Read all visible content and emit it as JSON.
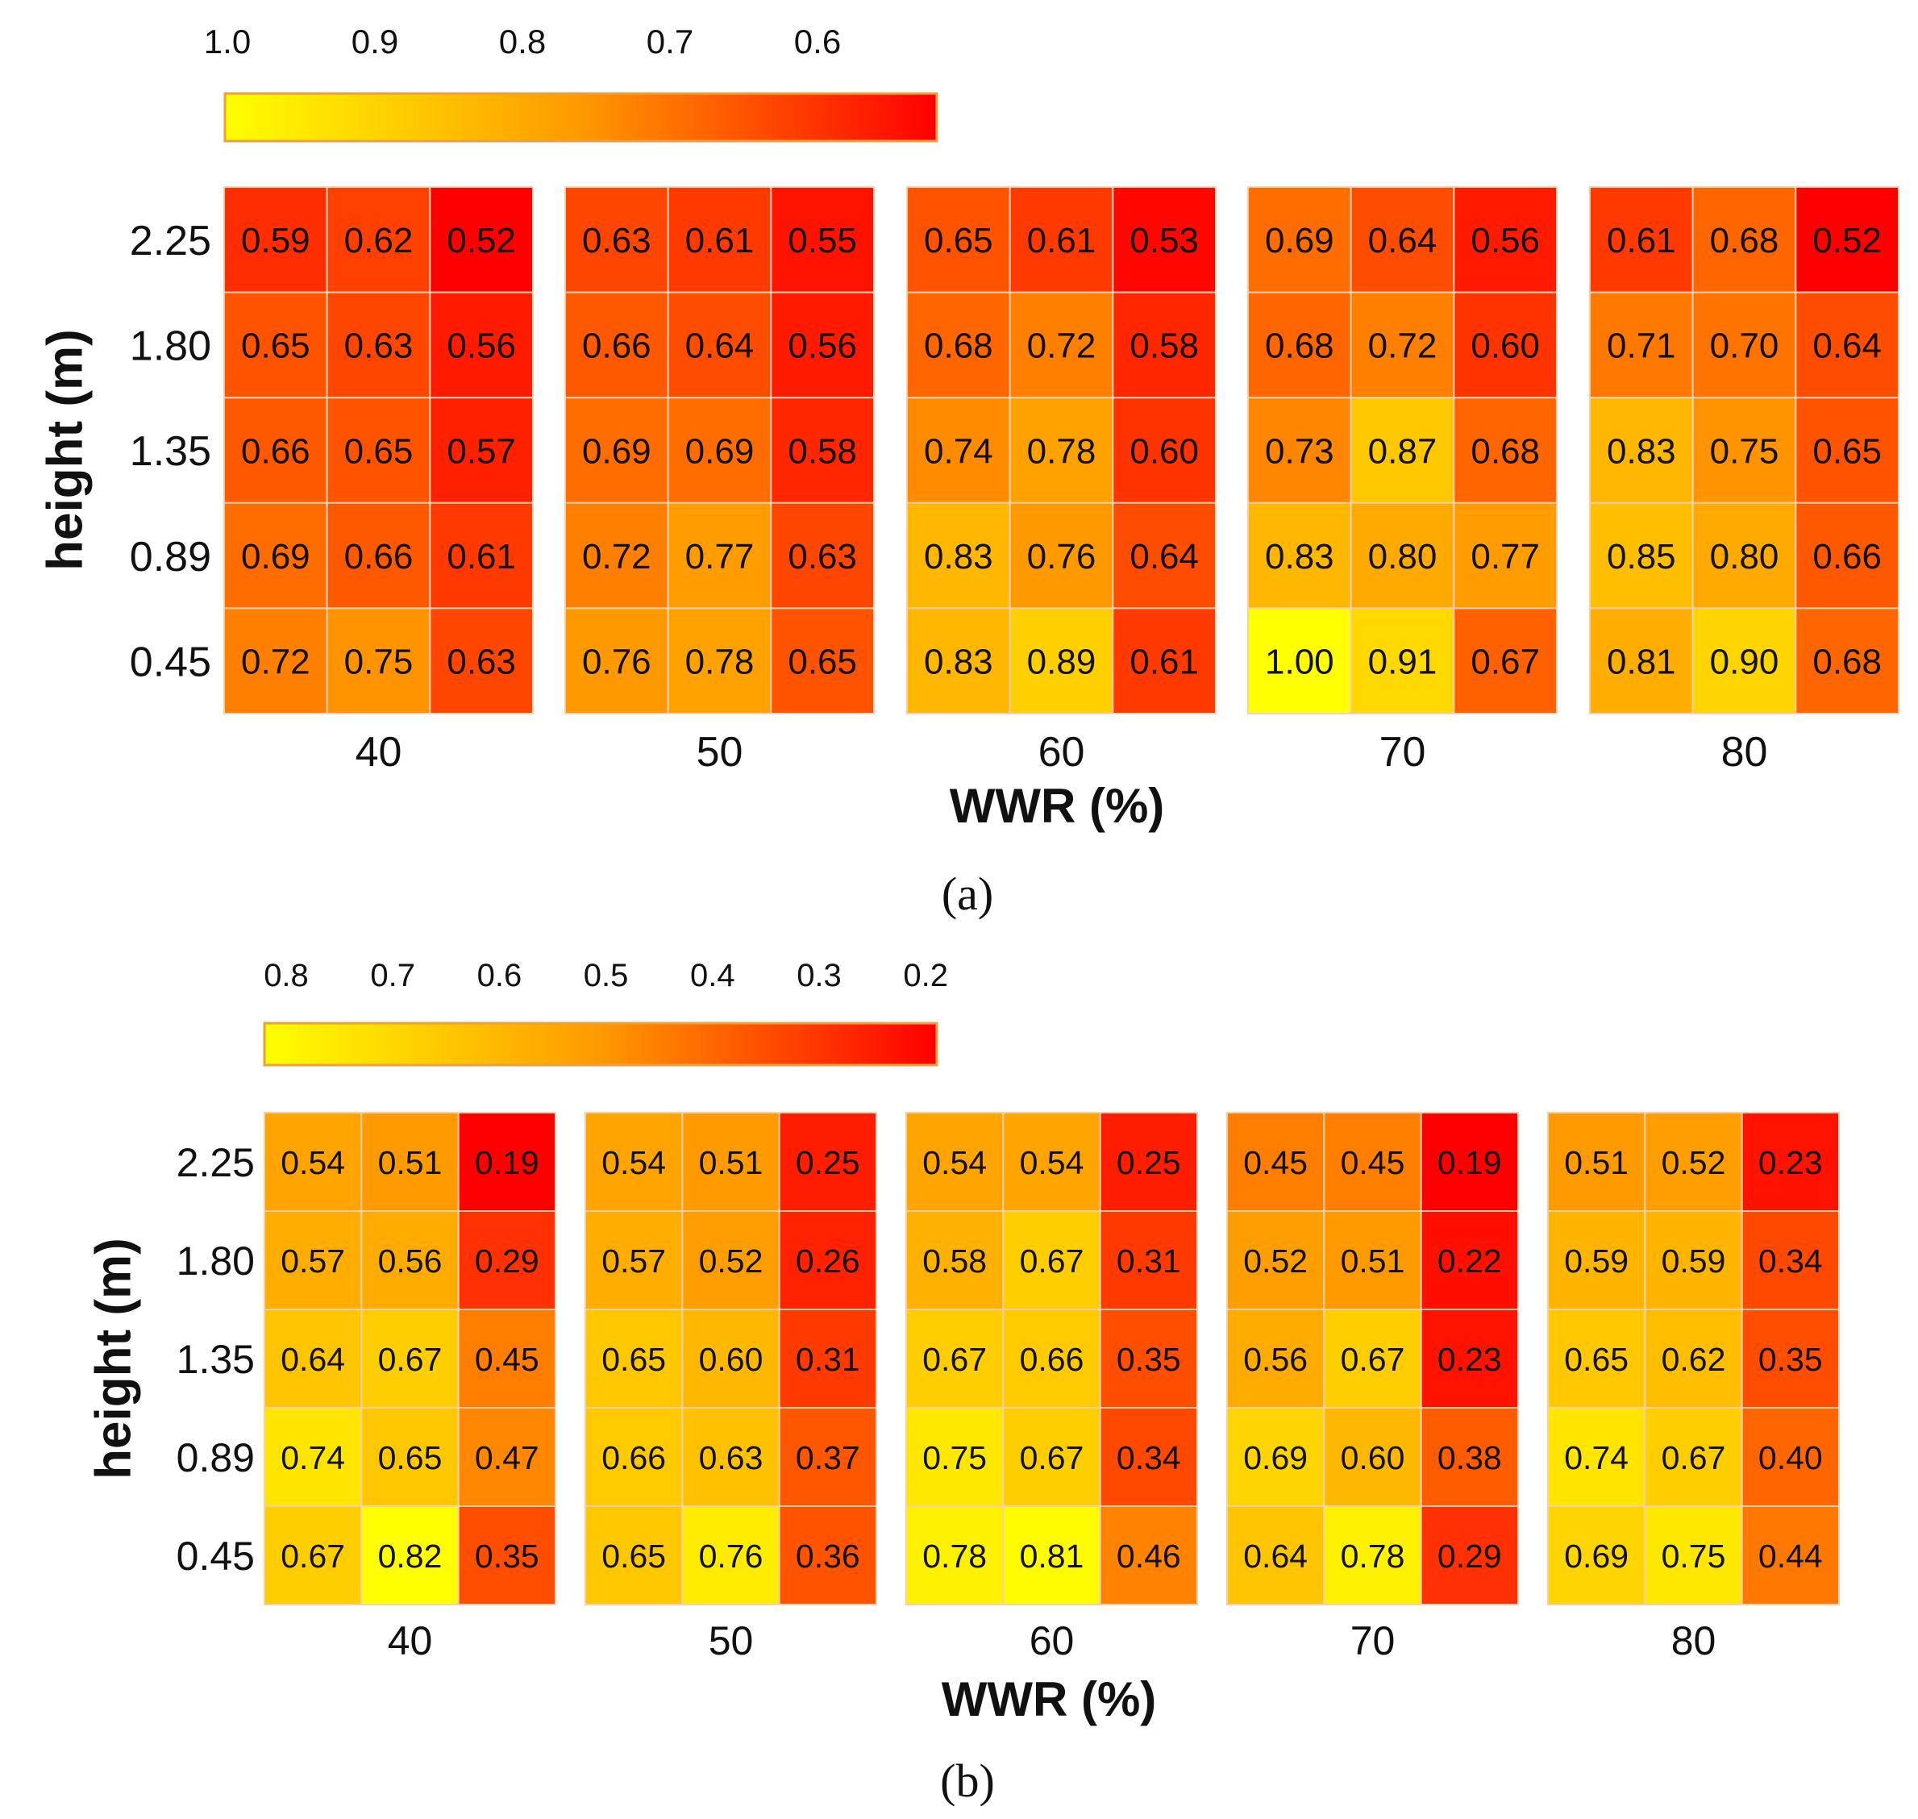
{
  "chart_data": [
    {
      "type": "heatmap",
      "panel_label": "(a)",
      "xlabel": "WWR  (%)",
      "ylabel": "height (m)",
      "y_ticks": [
        "2.25",
        "1.80",
        "1.35",
        "0.89",
        "0.45"
      ],
      "colorbar": {
        "ticks": [
          "1.0",
          "0.9",
          "0.8",
          "0.7",
          "0.6"
        ],
        "tick_values": [
          1.0,
          0.9,
          0.8,
          0.7,
          0.6
        ],
        "range": [
          0.52,
          1.0
        ],
        "colors": [
          "#ffff00",
          "#ff9900",
          "#ff0000"
        ]
      },
      "groups": [
        {
          "wwr": "40",
          "values": [
            [
              "0.59",
              "0.62",
              "0.52"
            ],
            [
              "0.65",
              "0.63",
              "0.56"
            ],
            [
              "0.66",
              "0.65",
              "0.57"
            ],
            [
              "0.69",
              "0.66",
              "0.61"
            ],
            [
              "0.72",
              "0.75",
              "0.63"
            ]
          ]
        },
        {
          "wwr": "50",
          "values": [
            [
              "0.63",
              "0.61",
              "0.55"
            ],
            [
              "0.66",
              "0.64",
              "0.56"
            ],
            [
              "0.69",
              "0.69",
              "0.58"
            ],
            [
              "0.72",
              "0.77",
              "0.63"
            ],
            [
              "0.76",
              "0.78",
              "0.65"
            ]
          ]
        },
        {
          "wwr": "60",
          "values": [
            [
              "0.65",
              "0.61",
              "0.53"
            ],
            [
              "0.68",
              "0.72",
              "0.58"
            ],
            [
              "0.74",
              "0.78",
              "0.60"
            ],
            [
              "0.83",
              "0.76",
              "0.64"
            ],
            [
              "0.83",
              "0.89",
              "0.61"
            ]
          ]
        },
        {
          "wwr": "70",
          "values": [
            [
              "0.69",
              "0.64",
              "0.56"
            ],
            [
              "0.68",
              "0.72",
              "0.60"
            ],
            [
              "0.73",
              "0.87",
              "0.68"
            ],
            [
              "0.83",
              "0.80",
              "0.77"
            ],
            [
              "1.00",
              "0.91",
              "0.67"
            ]
          ]
        },
        {
          "wwr": "80",
          "values": [
            [
              "0.61",
              "0.68",
              "0.52"
            ],
            [
              "0.71",
              "0.70",
              "0.64"
            ],
            [
              "0.83",
              "0.75",
              "0.65"
            ],
            [
              "0.85",
              "0.80",
              "0.66"
            ],
            [
              "0.81",
              "0.90",
              "0.68"
            ]
          ]
        }
      ]
    },
    {
      "type": "heatmap",
      "panel_label": "(b)",
      "xlabel": "WWR  (%)",
      "ylabel": "height (m)",
      "y_ticks": [
        "2.25",
        "1.80",
        "1.35",
        "0.89",
        "0.45"
      ],
      "colorbar": {
        "ticks": [
          "0.8",
          "0.7",
          "0.6",
          "0.5",
          "0.4",
          "0.3",
          "0.2"
        ],
        "tick_values": [
          0.8,
          0.7,
          0.6,
          0.5,
          0.4,
          0.3,
          0.2
        ],
        "range": [
          0.19,
          0.82
        ],
        "colors": [
          "#ffff00",
          "#ff9900",
          "#ff0000"
        ]
      },
      "groups": [
        {
          "wwr": "40",
          "values": [
            [
              "0.54",
              "0.51",
              "0.19"
            ],
            [
              "0.57",
              "0.56",
              "0.29"
            ],
            [
              "0.64",
              "0.67",
              "0.45"
            ],
            [
              "0.74",
              "0.65",
              "0.47"
            ],
            [
              "0.67",
              "0.82",
              "0.35"
            ]
          ]
        },
        {
          "wwr": "50",
          "values": [
            [
              "0.54",
              "0.51",
              "0.25"
            ],
            [
              "0.57",
              "0.52",
              "0.26"
            ],
            [
              "0.65",
              "0.60",
              "0.31"
            ],
            [
              "0.66",
              "0.63",
              "0.37"
            ],
            [
              "0.65",
              "0.76",
              "0.36"
            ]
          ]
        },
        {
          "wwr": "60",
          "values": [
            [
              "0.54",
              "0.54",
              "0.25"
            ],
            [
              "0.58",
              "0.67",
              "0.31"
            ],
            [
              "0.67",
              "0.66",
              "0.35"
            ],
            [
              "0.75",
              "0.67",
              "0.34"
            ],
            [
              "0.78",
              "0.81",
              "0.46"
            ]
          ]
        },
        {
          "wwr": "70",
          "values": [
            [
              "0.45",
              "0.45",
              "0.19"
            ],
            [
              "0.52",
              "0.51",
              "0.22"
            ],
            [
              "0.56",
              "0.67",
              "0.23"
            ],
            [
              "0.69",
              "0.60",
              "0.38"
            ],
            [
              "0.64",
              "0.78",
              "0.29"
            ]
          ]
        },
        {
          "wwr": "80",
          "values": [
            [
              "0.51",
              "0.52",
              "0.23"
            ],
            [
              "0.59",
              "0.59",
              "0.34"
            ],
            [
              "0.65",
              "0.62",
              "0.35"
            ],
            [
              "0.74",
              "0.67",
              "0.40"
            ],
            [
              "0.69",
              "0.75",
              "0.44"
            ]
          ]
        }
      ]
    }
  ]
}
